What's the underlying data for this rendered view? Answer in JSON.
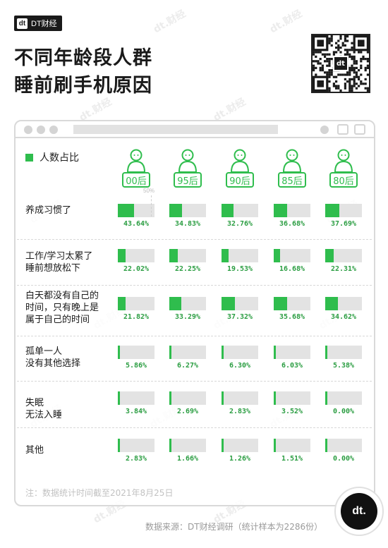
{
  "brand": {
    "mark": "dt",
    "name": "DT财经"
  },
  "title": {
    "line1": "不同年龄段人群",
    "line2": "睡前刷手机原因"
  },
  "watermark": "dt.财经",
  "qr_logo": "dt",
  "legend": {
    "label": "人数占比"
  },
  "reference_mark": "50%",
  "colors": {
    "accent": "#2fbd4d",
    "track": "#e3e3e3"
  },
  "chart_data": {
    "type": "bar",
    "unit": "%",
    "xlim": [
      0,
      100
    ],
    "reference_line": 50,
    "groups": [
      "00后",
      "95后",
      "90后",
      "85后",
      "80后"
    ],
    "categories": [
      "养成习惯了",
      "工作/学习太累了\n睡前想放松下",
      "白天都没有自己的\n时间，只有晚上是\n属于自己的时间",
      "孤单一人\n没有其他选择",
      "失眠\n无法入睡",
      "其他"
    ],
    "values": [
      [
        43.64,
        34.83,
        32.76,
        36.68,
        37.69
      ],
      [
        22.02,
        22.25,
        19.53,
        16.68,
        22.31
      ],
      [
        21.82,
        33.29,
        37.32,
        35.68,
        34.62
      ],
      [
        5.86,
        6.27,
        6.3,
        6.03,
        5.38
      ],
      [
        3.84,
        2.69,
        2.83,
        3.52,
        0.0
      ],
      [
        2.83,
        1.66,
        1.26,
        1.51,
        0.0
      ]
    ],
    "labels": [
      [
        "43.64%",
        "34.83%",
        "32.76%",
        "36.68%",
        "37.69%"
      ],
      [
        "22.02%",
        "22.25%",
        "19.53%",
        "16.68%",
        "22.31%"
      ],
      [
        "21.82%",
        "33.29%",
        "37.32%",
        "35.68%",
        "34.62%"
      ],
      [
        "5.86%",
        "6.27%",
        "6.30%",
        "6.03%",
        "5.38%"
      ],
      [
        "3.84%",
        "2.69%",
        "2.83%",
        "3.52%",
        "0.00%"
      ],
      [
        "2.83%",
        "1.66%",
        "1.26%",
        "1.51%",
        "0.00%"
      ]
    ]
  },
  "footer": {
    "note": "注：数据统计时间截至2021年8月25日",
    "source": "数据来源：DT财经调研（统计样本为2286份）",
    "badge": "dt."
  }
}
